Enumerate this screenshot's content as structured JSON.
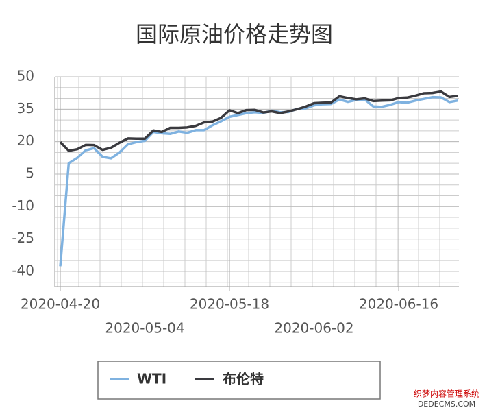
{
  "chart_data": {
    "type": "line",
    "title": "国际原油价格走势图",
    "categories": [
      "2020-04-20",
      null,
      null,
      null,
      null,
      null,
      null,
      null,
      null,
      null,
      "2020-05-04",
      null,
      null,
      null,
      null,
      null,
      null,
      null,
      null,
      null,
      "2020-05-18",
      null,
      null,
      null,
      null,
      null,
      null,
      null,
      null,
      null,
      "2020-06-02",
      null,
      null,
      null,
      null,
      null,
      null,
      null,
      null,
      null,
      "2020-06-16",
      null,
      null,
      null,
      null,
      null,
      null,
      null
    ],
    "series": [
      {
        "name": "WTI",
        "color": "#7fb2e0",
        "values": [
          -37.6,
          10.0,
          12.5,
          16.0,
          17.0,
          13.0,
          12.3,
          15.0,
          18.8,
          19.8,
          20.4,
          24.5,
          23.9,
          23.6,
          24.7,
          24.1,
          25.3,
          25.3,
          27.6,
          29.4,
          31.5,
          32.3,
          33.2,
          33.6,
          33.3,
          34.3,
          33.6,
          33.7,
          35.2,
          35.4,
          36.8,
          37.3,
          37.4,
          39.5,
          38.4,
          39.3,
          39.5,
          36.3,
          36.1,
          37.0,
          38.3,
          38.0,
          39.0,
          39.8,
          40.6,
          40.5,
          38.3,
          39.0
        ]
      },
      {
        "name": "布伦特",
        "color": "#3a3a3f",
        "values": [
          19.8,
          15.8,
          16.5,
          18.5,
          18.4,
          16.2,
          17.2,
          19.5,
          21.5,
          21.4,
          21.4,
          25.2,
          24.5,
          26.4,
          26.4,
          26.6,
          27.3,
          28.9,
          29.3,
          31.0,
          34.5,
          33.2,
          34.6,
          34.7,
          33.5,
          34.0,
          33.2,
          34.0,
          35.0,
          36.2,
          37.8,
          38.0,
          38.1,
          41.0,
          40.2,
          39.6,
          40.0,
          38.8,
          39.0,
          39.1,
          40.2,
          40.4,
          41.3,
          42.4,
          42.5,
          43.2,
          40.7,
          41.2
        ]
      }
    ],
    "ylim": [
      -47,
      50
    ],
    "yticks": [
      50,
      35,
      20,
      5,
      -10,
      -25,
      -40
    ],
    "grid": true,
    "legend": "bottom",
    "watermark": [
      "织梦内容管理系统",
      "DEDECMS.COM"
    ]
  }
}
